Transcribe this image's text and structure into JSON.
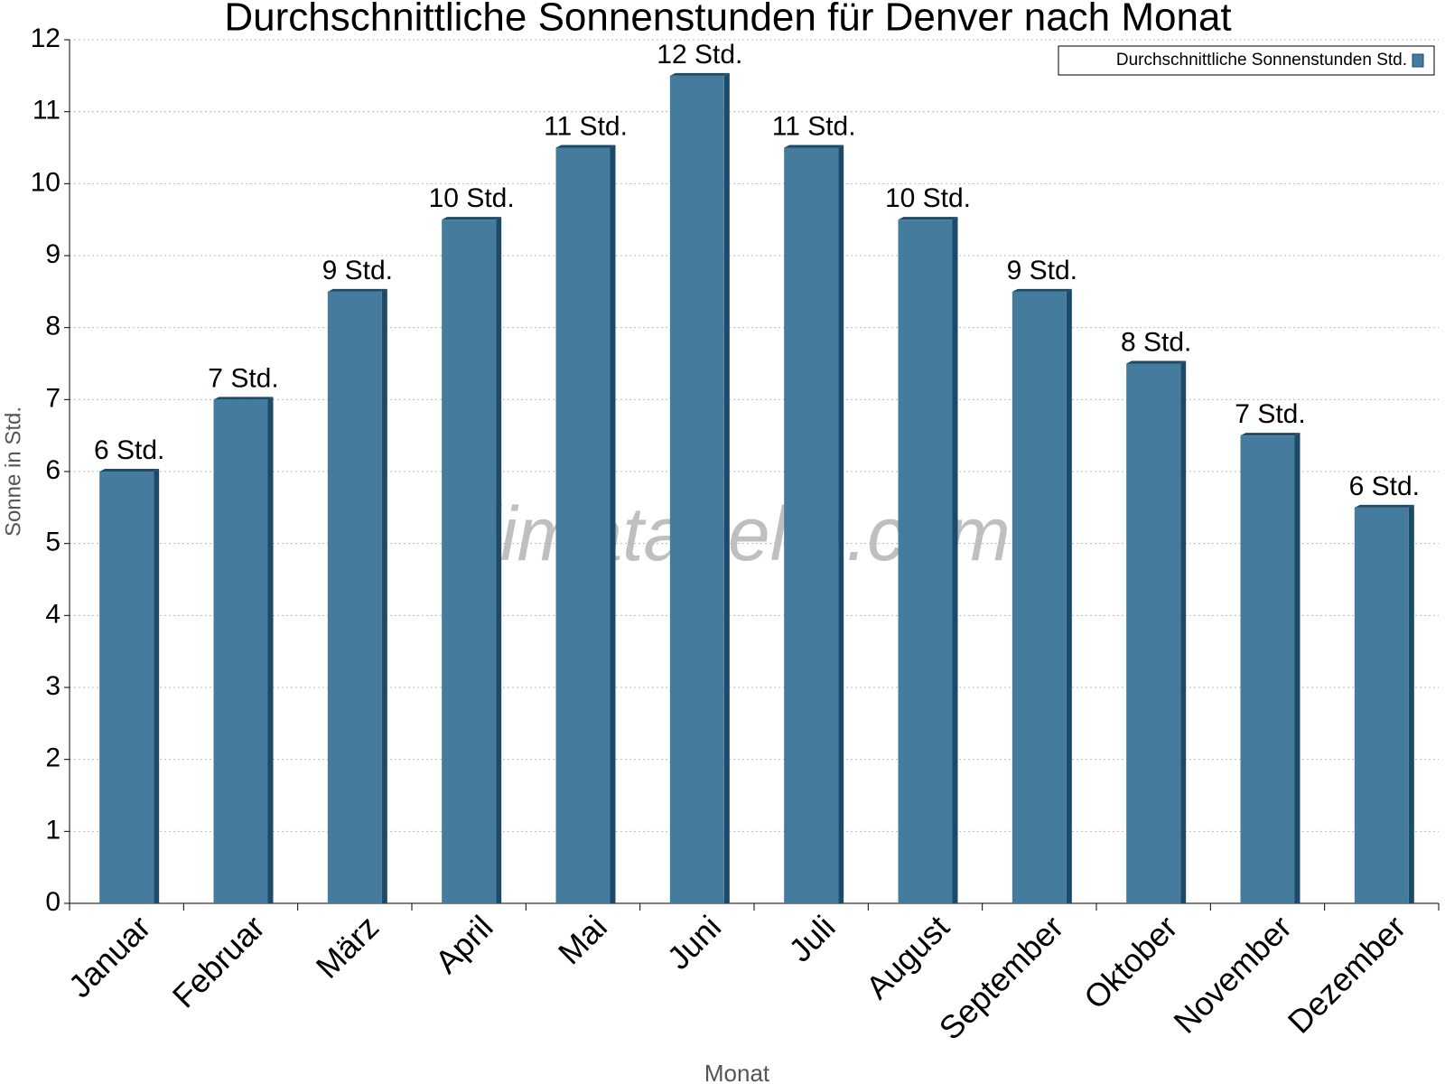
{
  "chart_data": {
    "type": "bar",
    "title": "Durchschnittliche Sonnenstunden für Denver nach Monat",
    "x_label": "Monat",
    "y_label": "Sonne in Std.",
    "watermark": "klimatabelle.com",
    "categories": [
      "Januar",
      "Februar",
      "März",
      "April",
      "Mai",
      "Juni",
      "Juli",
      "August",
      "September",
      "Oktober",
      "November",
      "Dezember"
    ],
    "series": [
      {
        "name": "Durchschnittliche Sonnenstunden Std.",
        "color": "#457b9d",
        "values": [
          6,
          7,
          8.5,
          9.5,
          10.5,
          11.5,
          10.5,
          9.5,
          8.5,
          7.5,
          6.5,
          5.5
        ],
        "value_labels": [
          "6 Std.",
          "7 Std.",
          "9 Std.",
          "10 Std.",
          "11 Std.",
          "12 Std.",
          "11 Std.",
          "10 Std.",
          "9 Std.",
          "8 Std.",
          "7 Std.",
          "6 Std."
        ]
      }
    ],
    "ylim": [
      0,
      12
    ],
    "yticks": [
      0,
      1,
      2,
      3,
      4,
      5,
      6,
      7,
      8,
      9,
      10,
      11,
      12
    ],
    "grid": true,
    "legend": "upper right"
  }
}
